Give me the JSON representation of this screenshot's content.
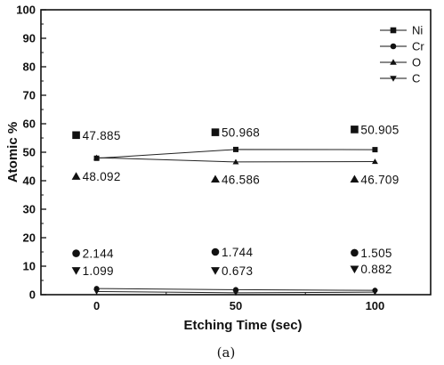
{
  "chart_data": {
    "type": "line",
    "xlabel": "Etching Time (sec)",
    "ylabel": "Atomic %",
    "caption": "(a)",
    "xlim": [
      -20,
      120
    ],
    "ylim": [
      0,
      100
    ],
    "xticks": [
      0,
      50,
      100
    ],
    "yticks": [
      0,
      10,
      20,
      30,
      40,
      50,
      60,
      70,
      80,
      90,
      100
    ],
    "legend_position": "top-right",
    "series": [
      {
        "name": "Ni",
        "marker": "square",
        "x": [
          0,
          50,
          100
        ],
        "y": [
          47.885,
          50.968,
          50.905
        ]
      },
      {
        "name": "Cr",
        "marker": "circle",
        "x": [
          0,
          50,
          100
        ],
        "y": [
          2.144,
          1.744,
          1.505
        ]
      },
      {
        "name": "O",
        "marker": "triangle-up",
        "x": [
          0,
          50,
          100
        ],
        "y": [
          48.092,
          46.586,
          46.709
        ]
      },
      {
        "name": "C",
        "marker": "triangle-down",
        "x": [
          0,
          50,
          100
        ],
        "y": [
          1.099,
          0.673,
          0.882
        ]
      }
    ],
    "annotations": [
      {
        "series": "Ni",
        "text": "47.885",
        "x": 0,
        "y": 56
      },
      {
        "series": "Ni",
        "text": "50.968",
        "x": 50,
        "y": 57
      },
      {
        "series": "Ni",
        "text": "50.905",
        "x": 100,
        "y": 58
      },
      {
        "series": "O",
        "text": "48.092",
        "x": 0,
        "y": 41.5
      },
      {
        "series": "O",
        "text": "46.586",
        "x": 50,
        "y": 40.5
      },
      {
        "series": "O",
        "text": "46.709",
        "x": 100,
        "y": 40.5
      },
      {
        "series": "Cr",
        "text": "2.144",
        "x": 0,
        "y": 14.5
      },
      {
        "series": "Cr",
        "text": "1.744",
        "x": 50,
        "y": 15
      },
      {
        "series": "Cr",
        "text": "1.505",
        "x": 100,
        "y": 14.7
      },
      {
        "series": "C",
        "text": "1.099",
        "x": 0,
        "y": 8.5
      },
      {
        "series": "C",
        "text": "0.673",
        "x": 50,
        "y": 8.5
      },
      {
        "series": "C",
        "text": "0.882",
        "x": 100,
        "y": 9
      }
    ]
  }
}
